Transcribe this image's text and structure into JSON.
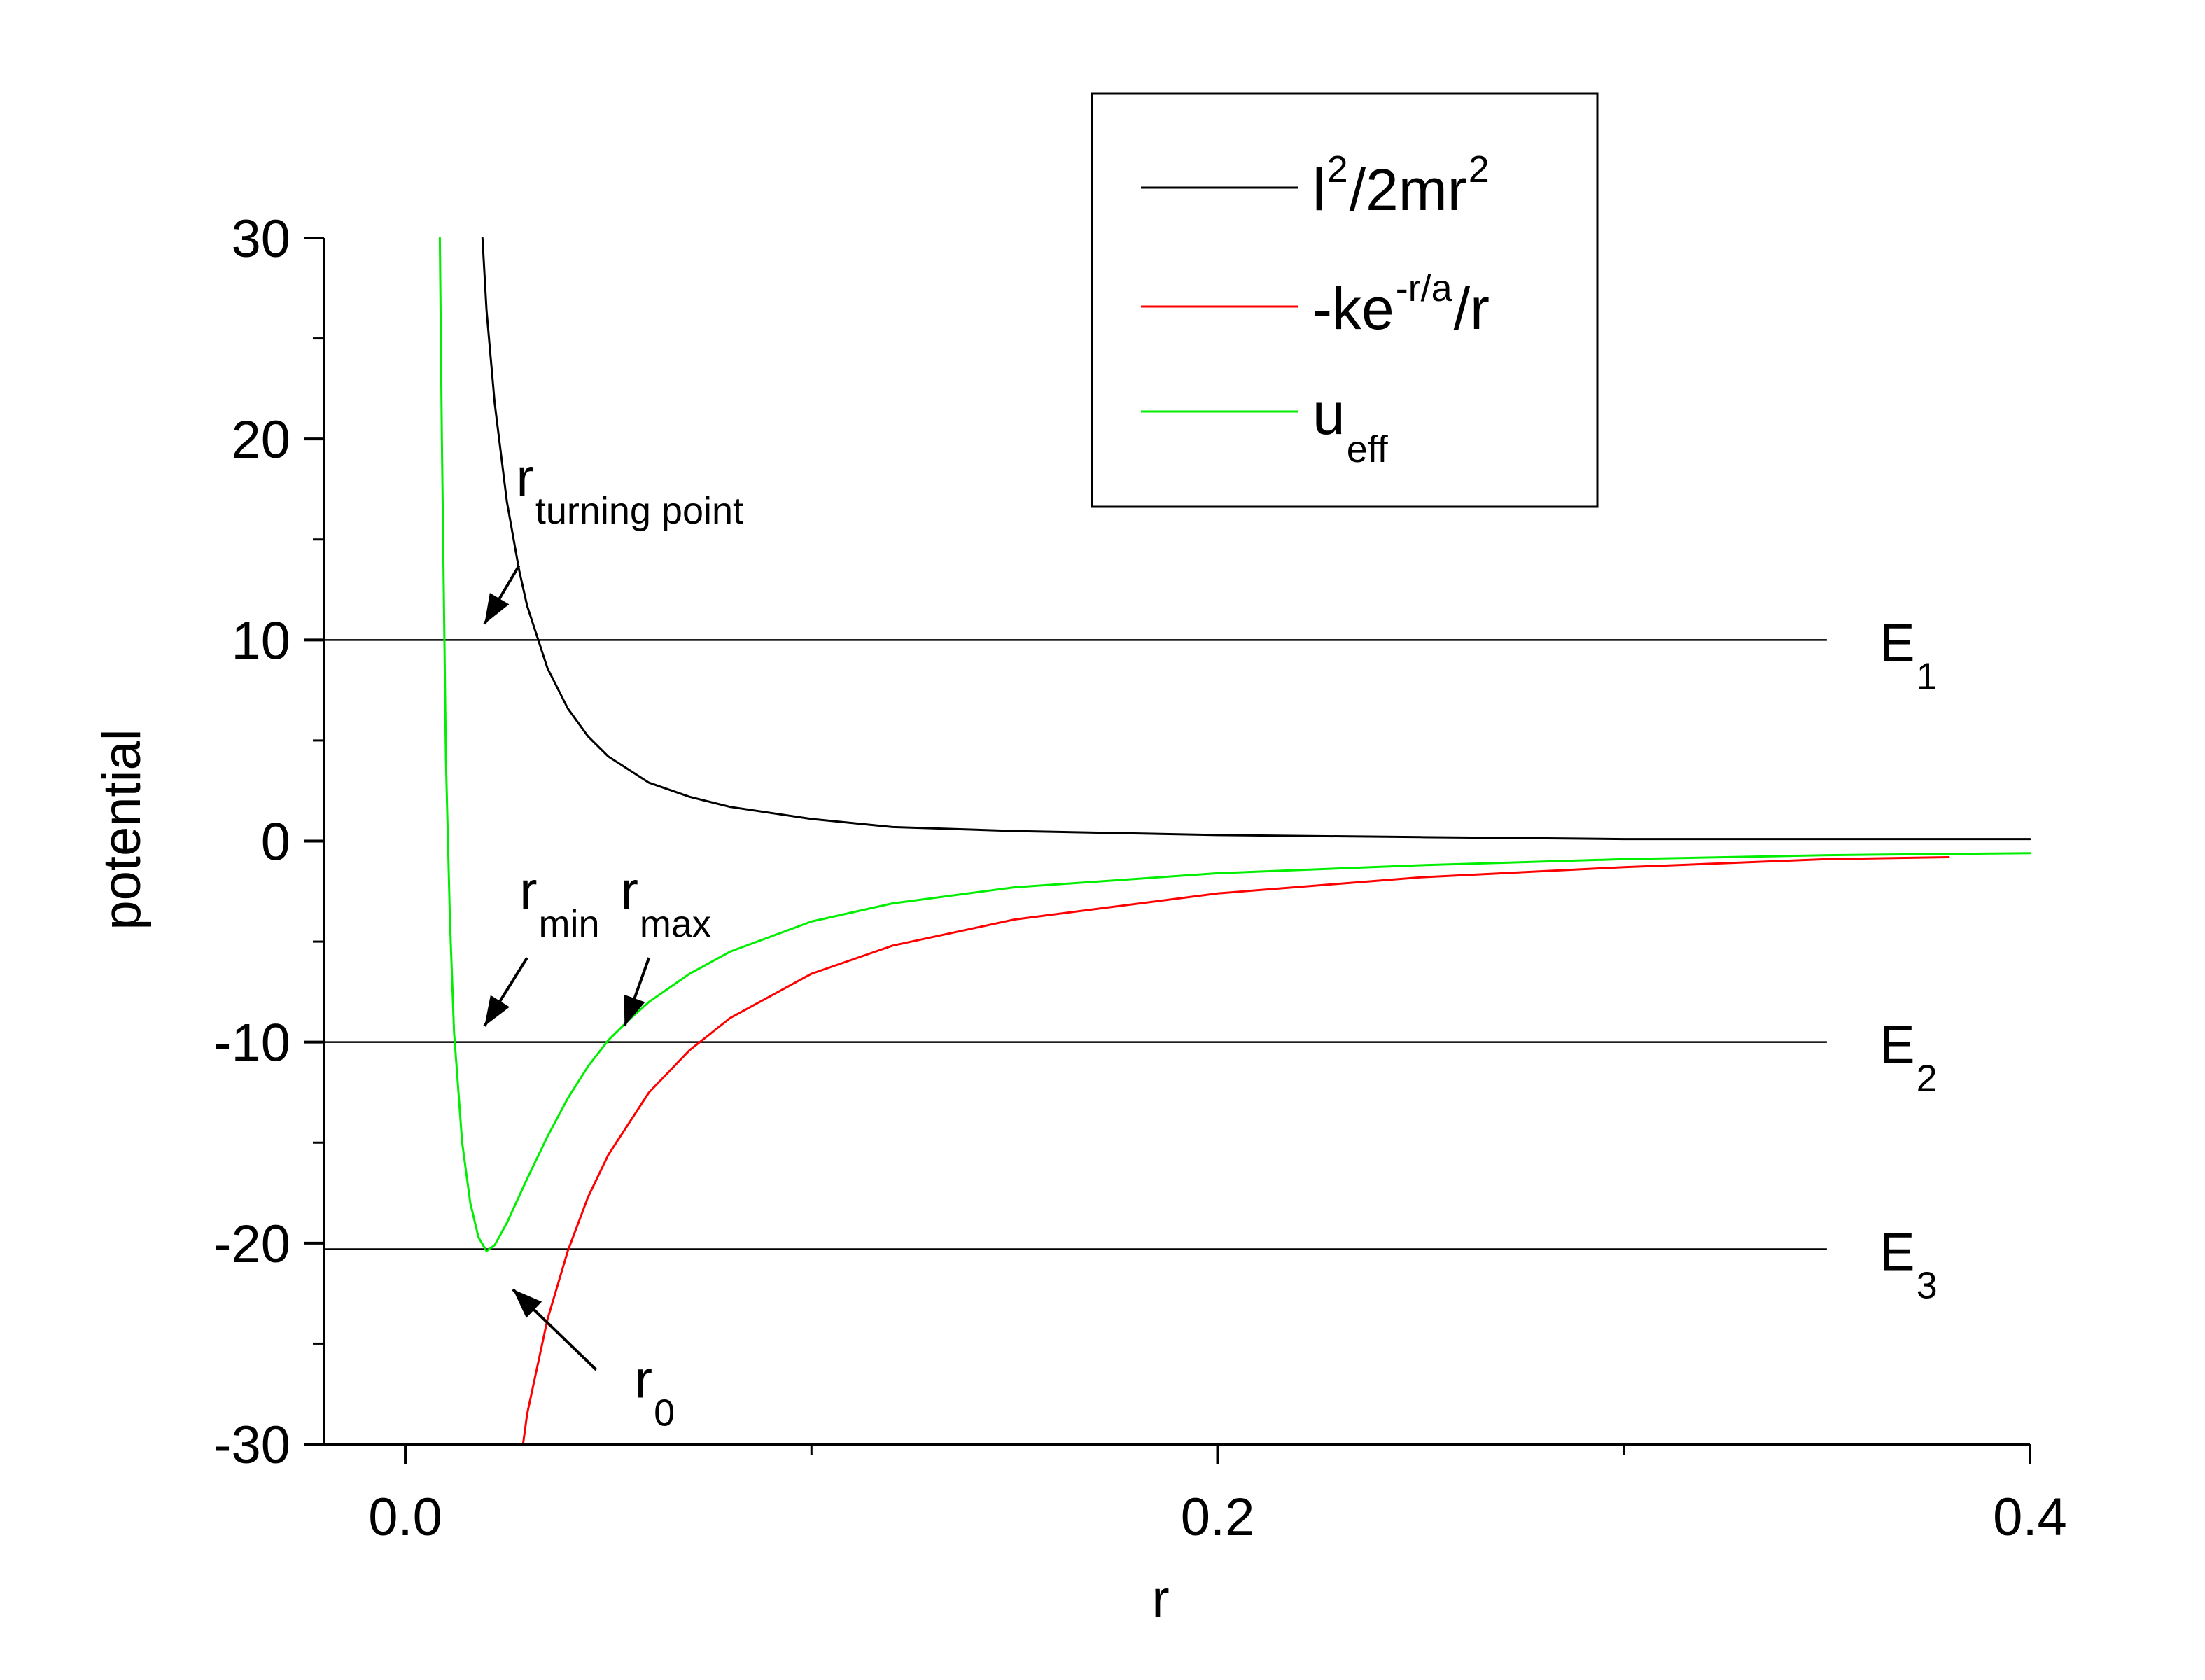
{
  "chart_data": {
    "type": "line",
    "title": "",
    "xlabel": "r",
    "ylabel": "potential",
    "xlim": [
      -0.02,
      0.4
    ],
    "ylim": [
      -30,
      30
    ],
    "xticks": [
      "0.0",
      "0.2",
      "0.4"
    ],
    "xtick_values": [
      0.0,
      0.2,
      0.4
    ],
    "yticks": [
      "30",
      "20",
      "10",
      "0",
      "-10",
      "-20",
      "-30"
    ],
    "ytick_values": [
      30,
      20,
      10,
      0,
      -10,
      -20,
      -30
    ],
    "series": [
      {
        "name_parts": [
          "l",
          "2",
          "/2mr",
          "2"
        ],
        "color": "#000000",
        "x": [
          0.019,
          0.02,
          0.022,
          0.025,
          0.028,
          0.03,
          0.035,
          0.04,
          0.045,
          0.05,
          0.06,
          0.07,
          0.08,
          0.1,
          0.12,
          0.15,
          0.2,
          0.25,
          0.3,
          0.35,
          0.4
        ],
        "y": [
          30.0,
          26.4,
          21.8,
          16.9,
          13.5,
          11.7,
          8.6,
          6.6,
          5.2,
          4.2,
          2.9,
          2.2,
          1.7,
          1.1,
          0.7,
          0.5,
          0.3,
          0.2,
          0.1,
          0.1,
          0.1
        ]
      },
      {
        "name_parts": [
          "-ke",
          "-r/a",
          "/r"
        ],
        "color": "#ff0000",
        "x": [
          0.029,
          0.03,
          0.035,
          0.04,
          0.045,
          0.05,
          0.06,
          0.07,
          0.08,
          0.1,
          0.12,
          0.15,
          0.2,
          0.25,
          0.3,
          0.35,
          0.38
        ],
        "y": [
          -30.0,
          -28.5,
          -23.8,
          -20.4,
          -17.7,
          -15.6,
          -12.5,
          -10.4,
          -8.8,
          -6.6,
          -5.2,
          -3.9,
          -2.6,
          -1.8,
          -1.3,
          -0.9,
          -0.8
        ]
      },
      {
        "name_parts": [
          "u",
          "eff"
        ],
        "color": "#00ee00",
        "x": [
          0.0085,
          0.009,
          0.01,
          0.011,
          0.012,
          0.014,
          0.016,
          0.018,
          0.02,
          0.022,
          0.025,
          0.03,
          0.035,
          0.04,
          0.045,
          0.05,
          0.055,
          0.06,
          0.07,
          0.08,
          0.1,
          0.12,
          0.15,
          0.2,
          0.25,
          0.3,
          0.35,
          0.4
        ],
        "y": [
          30.0,
          20.0,
          4.0,
          -4.0,
          -9.5,
          -15.0,
          -18.0,
          -19.7,
          -20.4,
          -20.1,
          -19.0,
          -16.8,
          -14.7,
          -12.8,
          -11.2,
          -9.9,
          -8.9,
          -8.0,
          -6.6,
          -5.5,
          -4.0,
          -3.1,
          -2.3,
          -1.6,
          -1.2,
          -0.9,
          -0.7,
          -0.6
        ]
      }
    ],
    "energy_levels": [
      {
        "label": "E",
        "sub": "1",
        "y": 10.0
      },
      {
        "label": "E",
        "sub": "2",
        "y": -10.0
      },
      {
        "label": "E",
        "sub": "3",
        "y": -20.3
      }
    ],
    "energy_x_range": [
      -0.02,
      0.35
    ],
    "annotations": [
      {
        "main": "r",
        "sub": "turning point",
        "arrow_from": [
          0.028,
          13.7
        ],
        "arrow_to": [
          0.0195,
          10.8
        ]
      },
      {
        "main": "r",
        "sub": "min",
        "arrow_from": [
          0.03,
          -5.8
        ],
        "arrow_to": [
          0.0195,
          -9.2
        ]
      },
      {
        "main": "r",
        "sub": "max",
        "arrow_from": [
          0.06,
          -5.8
        ],
        "arrow_to": [
          0.054,
          -9.2
        ]
      },
      {
        "main": "r",
        "sub": "0",
        "arrow_from": [
          0.047,
          -26.3
        ],
        "arrow_to": [
          0.0265,
          -22.3
        ]
      }
    ],
    "legend_position": "top-right",
    "grid": false
  }
}
